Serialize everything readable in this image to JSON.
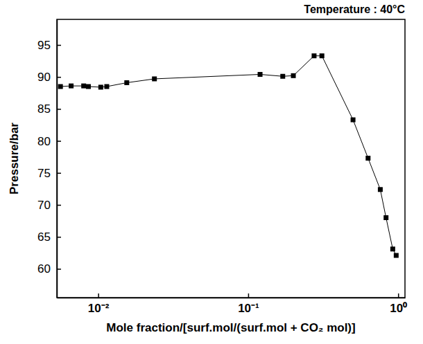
{
  "chart_data": {
    "type": "line",
    "title": "Temperature : 40°C",
    "x_label": "Mole fraction/[surf.mol/(surf.mol + CO₂ mol)]",
    "y_label": "Pressure/bar",
    "x": [
      0.0056,
      0.0066,
      0.008,
      0.0086,
      0.0104,
      0.0114,
      0.0155,
      0.0237,
      0.12,
      0.17,
      0.2,
      0.275,
      0.31,
      0.5,
      0.63,
      0.76,
      0.83,
      0.92,
      0.97
    ],
    "values": [
      88.5,
      88.6,
      88.6,
      88.5,
      88.4,
      88.5,
      89.1,
      89.7,
      90.4,
      90.1,
      90.2,
      93.3,
      93.3,
      83.3,
      77.3,
      72.4,
      68.0,
      63.1,
      62.1
    ],
    "color": "#000000",
    "marker": "square",
    "line_style": "solid",
    "log": "x",
    "xlim": [
      0.0053,
      1.11
    ],
    "ylim": [
      55.5,
      99
    ],
    "xticks": [
      {
        "value": 0.01,
        "label": "10⁻²"
      },
      {
        "value": 0.1,
        "label": "10⁻¹"
      },
      {
        "value": 1,
        "label": "10⁰"
      }
    ],
    "yticks": [
      60,
      65,
      70,
      75,
      80,
      85,
      90,
      95
    ]
  }
}
